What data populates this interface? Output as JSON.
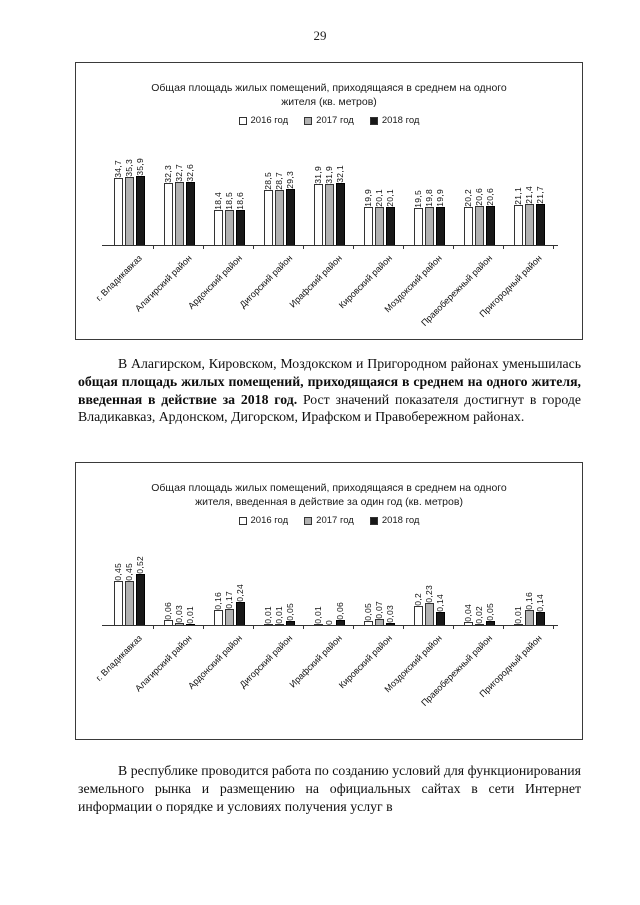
{
  "page": {
    "number": "29"
  },
  "paragraphs": {
    "analysis": {
      "normal_start": "В Алагирском, Кировском, Моздокском и Пригородном районах уменьшилась ",
      "bold": "общая площадь жилых помещений, приходящаяся в среднем на одного  жителя, введенная в действие за 2018 год.",
      "normal_end": "  Рост значений показателя достигнут в городе Владикавказ, Ардонском, Дигорском, Ирафском и Правобережном районах."
    },
    "closing": "В республике проводится работа по созданию условий для функционирования земельного рынка и размещению на официальных сайтах в сети Интернет информации о порядке и условиях получения услуг в"
  },
  "chart_data": [
    {
      "type": "bar",
      "title": "Общая площадь жилых помещений, приходящаяся в среднем на одного жителя (кв. метров)",
      "categories": [
        "г. Владикавказ",
        "Алагирский район",
        "Ардонский район",
        "Дигорский район",
        "Ирафский район",
        "Кировский район",
        "Моздокский район",
        "Правобережный район",
        "Пригородный район"
      ],
      "series": [
        {
          "name": "2016 год",
          "color": "#ffffff",
          "values": [
            34.7,
            32.3,
            18.4,
            28.5,
            31.9,
            19.9,
            19.5,
            20.2,
            21.1
          ],
          "labels": [
            "34,7",
            "32,3",
            "18,4",
            "28,5",
            "31,9",
            "19,9",
            "19,5",
            "20,2",
            "21,1"
          ]
        },
        {
          "name": "2017 год",
          "color": "#b2b2b2",
          "values": [
            35.3,
            32.7,
            18.5,
            28.7,
            31.9,
            20.1,
            19.8,
            20.6,
            21.4
          ],
          "labels": [
            "35,3",
            "32,7",
            "18,5",
            "28,7",
            "31,9",
            "20,1",
            "19,8",
            "20,6",
            "21,4"
          ]
        },
        {
          "name": "2018 год",
          "color": "#181818",
          "values": [
            35.9,
            32.6,
            18.6,
            29.3,
            32.1,
            20.1,
            19.9,
            20.6,
            21.7
          ],
          "labels": [
            "35,9",
            "32,6",
            "18,6",
            "29,3",
            "32,1",
            "20,1",
            "19,9",
            "20,6",
            "21,7"
          ]
        }
      ],
      "ylim": [
        0,
        40
      ],
      "grid": false,
      "legend_position": "top"
    },
    {
      "type": "bar",
      "title": "Общая площадь жилых помещений, приходящаяся в среднем на одного жителя, введенная в действие за один год  (кв. метров)",
      "categories": [
        "г. Владикавказ",
        "Алагирский район",
        "Ардонский район",
        "Дигорский район",
        "Ирафский район",
        "Кировский район",
        "Моздокский район",
        "Правобережный район",
        "Пригородный район"
      ],
      "series": [
        {
          "name": "2016 год",
          "color": "#ffffff",
          "values": [
            0.45,
            0.06,
            0.16,
            0.01,
            0.01,
            0.05,
            0.2,
            0.04,
            0.01
          ],
          "labels": [
            "0,45",
            "0,06",
            "0,16",
            "0,01",
            "0,01",
            "0,05",
            "0,2",
            "0,04",
            "0,01"
          ]
        },
        {
          "name": "2017 год",
          "color": "#b2b2b2",
          "values": [
            0.45,
            0.03,
            0.17,
            0.01,
            0,
            0.07,
            0.23,
            0.02,
            0.16
          ],
          "labels": [
            "0,45",
            "0,03",
            "0,17",
            "0,01",
            "0",
            "0,07",
            "0,23",
            "0,02",
            "0,16"
          ]
        },
        {
          "name": "2018 год",
          "color": "#181818",
          "values": [
            0.52,
            0.01,
            0.24,
            0.05,
            0.06,
            0.03,
            0.14,
            0.05,
            0.14
          ],
          "labels": [
            "0,52",
            "0,01",
            "0,24",
            "0,05",
            "0,06",
            "0,03",
            "0,14",
            "0,05",
            "0,14"
          ]
        }
      ],
      "ylim": [
        0,
        0.6
      ],
      "grid": false,
      "legend_position": "top"
    }
  ]
}
